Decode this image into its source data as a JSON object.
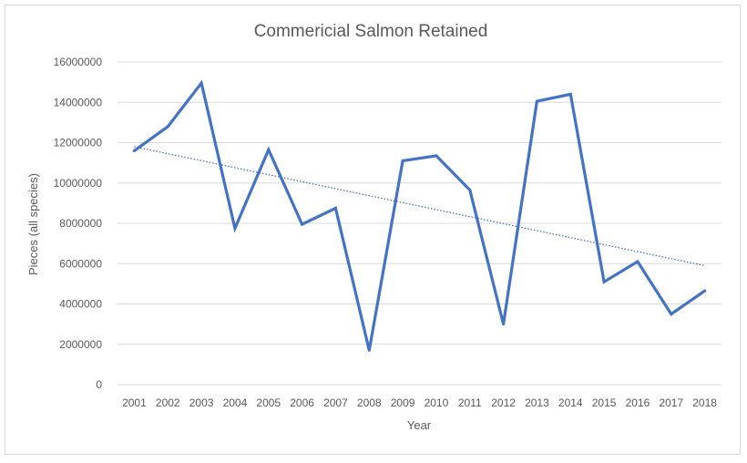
{
  "chart_data": {
    "type": "line",
    "title": "Commericial Salmon Retained",
    "xlabel": "Year",
    "ylabel": "Pieces (all species)",
    "x": [
      "2001",
      "2002",
      "2003",
      "2004",
      "2005",
      "2006",
      "2007",
      "2008",
      "2009",
      "2010",
      "2011",
      "2012",
      "2013",
      "2014",
      "2015",
      "2016",
      "2017",
      "2018"
    ],
    "series": [
      {
        "values": [
          11600000,
          12800000,
          14950000,
          7750000,
          11650000,
          7950000,
          8750000,
          1700000,
          11100000,
          11350000,
          9650000,
          3000000,
          14050000,
          14400000,
          5100000,
          6100000,
          3500000,
          4650000
        ]
      }
    ],
    "trendline": {
      "type": "linear",
      "start": 11800000,
      "end": 5900000,
      "style": "dotted"
    },
    "yticks": [
      "0",
      "2000000",
      "4000000",
      "6000000",
      "8000000",
      "10000000",
      "12000000",
      "14000000",
      "16000000"
    ],
    "ylim": [
      0,
      16000000
    ],
    "grid": true,
    "legend": "none",
    "colors": {
      "series": "#4472c4",
      "grid": "#d9d9d9",
      "text": "#595959",
      "border": "#d9d9d9"
    }
  }
}
